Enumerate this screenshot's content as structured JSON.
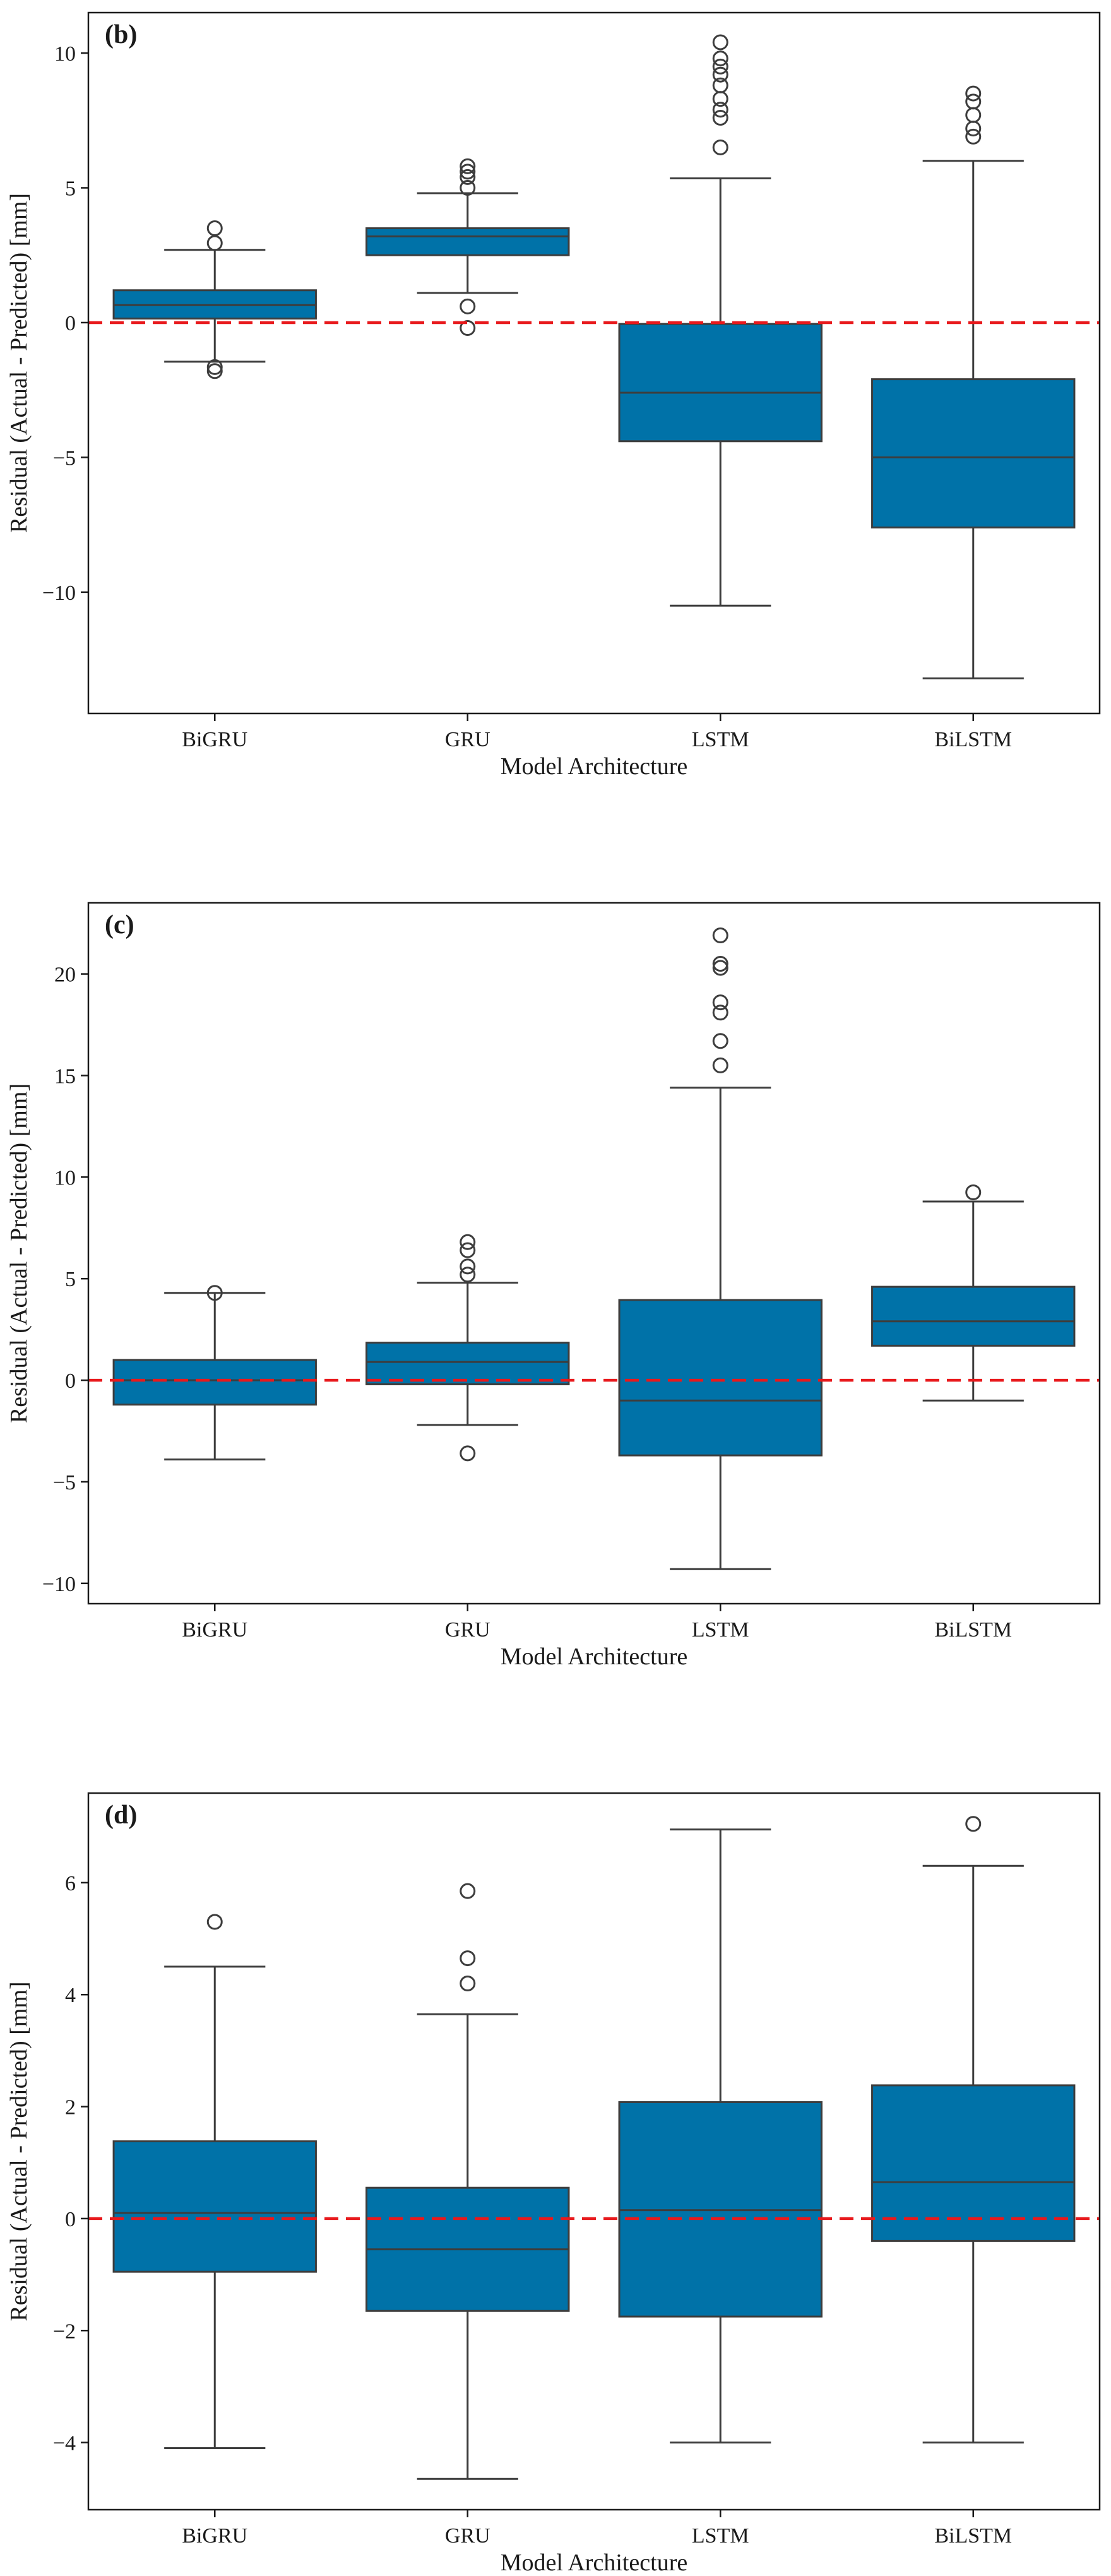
{
  "colors": {
    "box_fill": "#0072a8",
    "line": "#3d3d3d",
    "zero_line": "#e8191c"
  },
  "chart_data": [
    {
      "type": "box",
      "panel_label": "(b)",
      "xlabel": "Model Architecture",
      "ylabel": "Residual (Actual - Predicted) [mm]",
      "ylim": [
        -14.5,
        11.5
      ],
      "yticks": [
        -10,
        -5,
        0,
        5,
        10
      ],
      "ytick_labels": [
        "−10",
        "−5",
        "0",
        "5",
        "10"
      ],
      "reference_line_y": 0,
      "categories": [
        "BiGRU",
        "GRU",
        "LSTM",
        "BiLSTM"
      ],
      "boxes": [
        {
          "category": "BiGRU",
          "whisker_low": -1.45,
          "q1": 0.15,
          "median": 0.65,
          "q3": 1.2,
          "whisker_high": 2.7,
          "outliers": [
            3.5,
            2.95,
            -1.65,
            -1.8
          ]
        },
        {
          "category": "GRU",
          "whisker_low": 1.1,
          "q1": 2.5,
          "median": 3.2,
          "q3": 3.5,
          "whisker_high": 4.8,
          "outliers": [
            5.8,
            5.6,
            5.4,
            5.0,
            0.6,
            -0.2
          ]
        },
        {
          "category": "LSTM",
          "whisker_low": -10.5,
          "q1": -4.4,
          "median": -2.6,
          "q3": -0.05,
          "whisker_high": 5.35,
          "outliers": [
            10.4,
            9.8,
            9.5,
            9.2,
            8.8,
            8.3,
            7.9,
            7.6,
            6.5
          ]
        },
        {
          "category": "BiLSTM",
          "whisker_low": -13.2,
          "q1": -7.6,
          "median": -5.0,
          "q3": -2.1,
          "whisker_high": 6.0,
          "outliers": [
            8.5,
            8.2,
            7.7,
            7.2,
            6.9
          ]
        }
      ]
    },
    {
      "type": "box",
      "panel_label": "(c)",
      "xlabel": "Model Architecture",
      "ylabel": "Residual (Actual - Predicted) [mm]",
      "ylim": [
        -11,
        23.5
      ],
      "yticks": [
        -10,
        -5,
        0,
        5,
        10,
        15,
        20
      ],
      "ytick_labels": [
        "−10",
        "−5",
        "0",
        "5",
        "10",
        "15",
        "20"
      ],
      "reference_line_y": 0,
      "categories": [
        "BiGRU",
        "GRU",
        "LSTM",
        "BiLSTM"
      ],
      "boxes": [
        {
          "category": "BiGRU",
          "whisker_low": -3.9,
          "q1": -1.2,
          "median": 0.0,
          "q3": 1.0,
          "whisker_high": 4.3,
          "outliers": [
            4.3
          ]
        },
        {
          "category": "GRU",
          "whisker_low": -2.2,
          "q1": -0.2,
          "median": 0.9,
          "q3": 1.85,
          "whisker_high": 4.8,
          "outliers": [
            6.8,
            6.4,
            5.6,
            5.2,
            -3.6
          ]
        },
        {
          "category": "LSTM",
          "whisker_low": -9.3,
          "q1": -3.7,
          "median": -1.0,
          "q3": 3.95,
          "whisker_high": 14.4,
          "outliers": [
            21.9,
            20.5,
            20.3,
            18.6,
            18.1,
            16.7,
            15.5
          ]
        },
        {
          "category": "BiLSTM",
          "whisker_low": -1.0,
          "q1": 1.7,
          "median": 2.9,
          "q3": 4.6,
          "whisker_high": 8.8,
          "outliers": [
            9.25
          ]
        }
      ]
    },
    {
      "type": "box",
      "panel_label": "(d)",
      "xlabel": "Model Architecture",
      "ylabel": "Residual (Actual - Predicted) [mm]",
      "ylim": [
        -5.2,
        7.6
      ],
      "yticks": [
        -4,
        -2,
        0,
        2,
        4,
        6
      ],
      "ytick_labels": [
        "−4",
        "−2",
        "0",
        "2",
        "4",
        "6"
      ],
      "reference_line_y": 0,
      "categories": [
        "BiGRU",
        "GRU",
        "LSTM",
        "BiLSTM"
      ],
      "boxes": [
        {
          "category": "BiGRU",
          "whisker_low": -4.1,
          "q1": -0.95,
          "median": 0.1,
          "q3": 1.38,
          "whisker_high": 4.5,
          "outliers": [
            5.3
          ]
        },
        {
          "category": "GRU",
          "whisker_low": -4.65,
          "q1": -1.65,
          "median": -0.55,
          "q3": 0.55,
          "whisker_high": 3.65,
          "outliers": [
            5.85,
            4.65,
            4.2
          ]
        },
        {
          "category": "LSTM",
          "whisker_low": -4.0,
          "q1": -1.75,
          "median": 0.15,
          "q3": 2.08,
          "whisker_high": 6.95,
          "outliers": []
        },
        {
          "category": "BiLSTM",
          "whisker_low": -4.0,
          "q1": -0.4,
          "median": 0.65,
          "q3": 2.38,
          "whisker_high": 6.3,
          "outliers": [
            7.05
          ]
        }
      ]
    }
  ]
}
